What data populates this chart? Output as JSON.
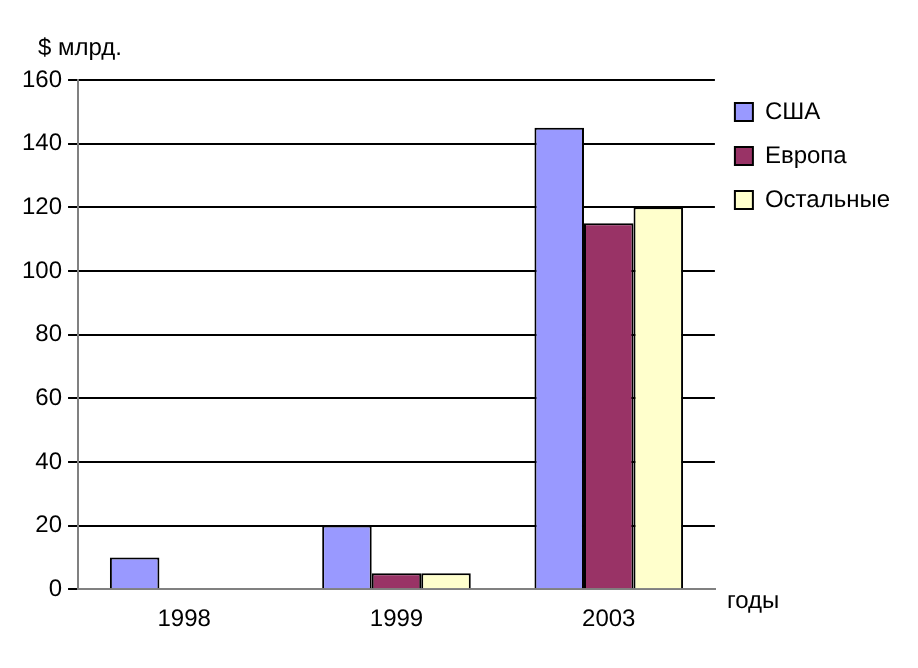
{
  "chart_data": {
    "type": "bar",
    "ylabel": "$ млрд.",
    "xlabel": "годы",
    "categories": [
      "1998",
      "1999",
      "2003"
    ],
    "series": [
      {
        "name": "США",
        "color": "#9999ff",
        "values": [
          10,
          20,
          145
        ]
      },
      {
        "name": "Европа",
        "color": "#993366",
        "values": [
          0,
          5,
          115
        ]
      },
      {
        "name": "Остальные",
        "color": "#ffffcc",
        "values": [
          0,
          5,
          120
        ]
      }
    ],
    "ylim": [
      0,
      160
    ],
    "yticks": [
      0,
      20,
      40,
      60,
      80,
      100,
      120,
      140,
      160
    ],
    "grid": "y",
    "legend": "right"
  }
}
